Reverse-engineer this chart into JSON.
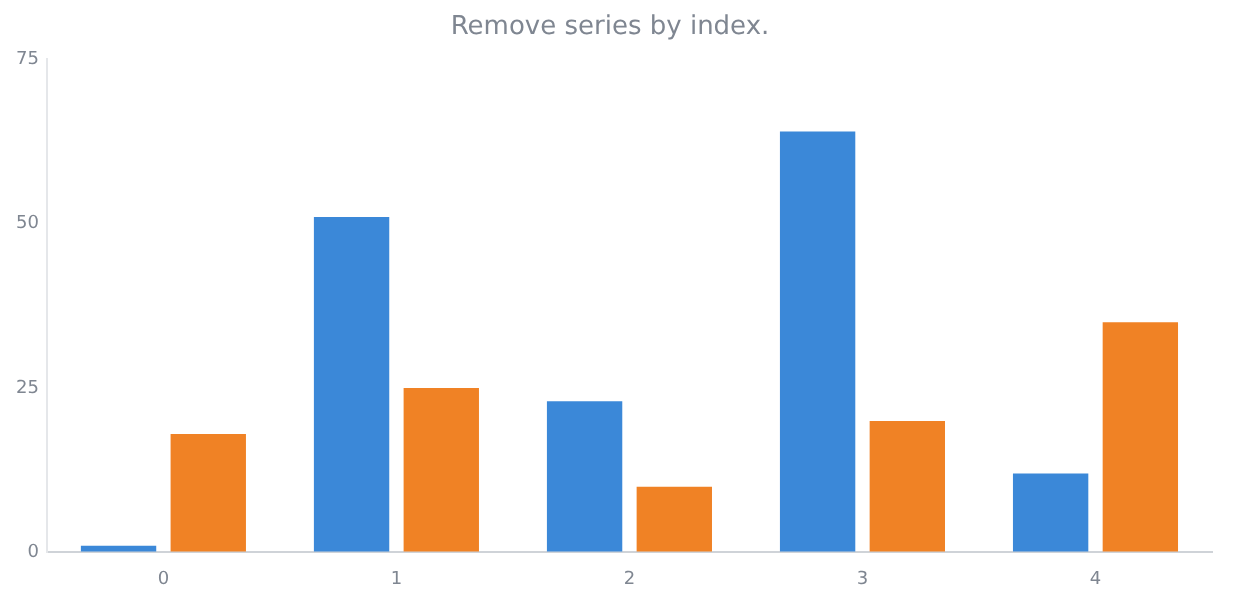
{
  "chart_data": {
    "type": "bar",
    "title": "Remove series by index.",
    "categories": [
      "0",
      "1",
      "2",
      "3",
      "4"
    ],
    "series": [
      {
        "color": "#3b88d8",
        "values": [
          1,
          51,
          23,
          64,
          12
        ]
      },
      {
        "color": "#f08225",
        "values": [
          18,
          25,
          10,
          20,
          35
        ]
      }
    ],
    "ylim": [
      0,
      75
    ],
    "yticks": [
      0,
      25,
      50,
      75
    ],
    "grid": false,
    "legend": false
  }
}
